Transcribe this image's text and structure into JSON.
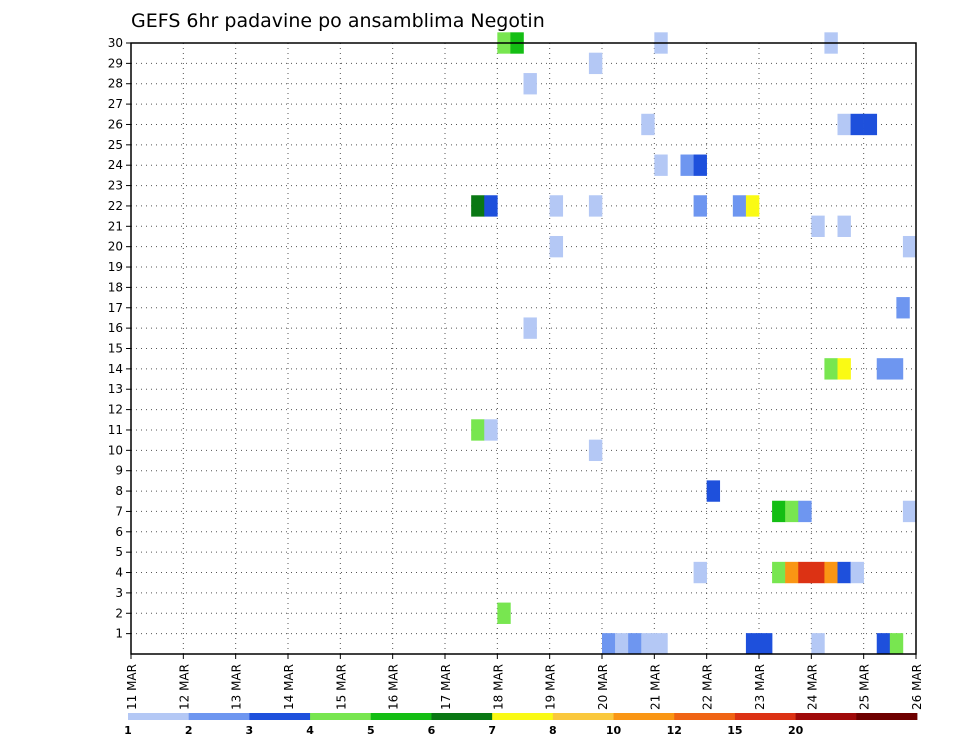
{
  "chart_data": {
    "type": "heatmap",
    "title": "GEFS 6hr padavine po ansamblima Negotin",
    "xlabel": "",
    "ylabel": "",
    "x_range": [
      0,
      60
    ],
    "y_range": [
      0,
      30
    ],
    "y_ticks": [
      1,
      2,
      3,
      4,
      5,
      6,
      7,
      8,
      9,
      10,
      11,
      12,
      13,
      14,
      15,
      16,
      17,
      18,
      19,
      20,
      21,
      22,
      23,
      24,
      25,
      26,
      27,
      28,
      29,
      30
    ],
    "x_ticks": [
      {
        "label": "11 MAR",
        "step": 0
      },
      {
        "label": "12 MAR",
        "step": 4
      },
      {
        "label": "13 MAR",
        "step": 8
      },
      {
        "label": "14 MAR",
        "step": 12
      },
      {
        "label": "15 MAR",
        "step": 16
      },
      {
        "label": "16 MAR",
        "step": 20
      },
      {
        "label": "17 MAR",
        "step": 24
      },
      {
        "label": "18 MAR",
        "step": 28
      },
      {
        "label": "19 MAR",
        "step": 32
      },
      {
        "label": "20 MAR",
        "step": 36
      },
      {
        "label": "21 MAR",
        "step": 40
      },
      {
        "label": "22 MAR",
        "step": 44
      },
      {
        "label": "23 MAR",
        "step": 48
      },
      {
        "label": "24 MAR",
        "step": 52
      },
      {
        "label": "25 MAR",
        "step": 56
      },
      {
        "label": "26 MAR",
        "step": 60
      }
    ],
    "colorbar": {
      "bins": [
        1,
        2,
        3,
        4,
        5,
        6,
        7,
        8,
        10,
        12,
        15,
        20
      ],
      "labels": [
        "1",
        "2",
        "3",
        "4",
        "5",
        "6",
        "7",
        "8",
        "10",
        "12",
        "15",
        "20"
      ],
      "colors": [
        "#b4c8f5",
        "#6e96f0",
        "#1e50dc",
        "#78e650",
        "#14be14",
        "#0a7814",
        "#fafa14",
        "#fac83c",
        "#fa9614",
        "#f06414",
        "#dc3214",
        "#a00a0a",
        "#6e0000"
      ]
    },
    "cells": [
      {
        "step": 28.5,
        "member": 30,
        "color": "#78e650"
      },
      {
        "step": 29.5,
        "member": 30,
        "color": "#14be14"
      },
      {
        "step": 40.5,
        "member": 30,
        "color": "#b4c8f5"
      },
      {
        "step": 53.5,
        "member": 30,
        "color": "#b4c8f5"
      },
      {
        "step": 35.5,
        "member": 29,
        "color": "#b4c8f5"
      },
      {
        "step": 30.5,
        "member": 28,
        "color": "#b4c8f5"
      },
      {
        "step": 39.5,
        "member": 26,
        "color": "#b4c8f5"
      },
      {
        "step": 54.5,
        "member": 26,
        "color": "#b4c8f5"
      },
      {
        "step": 55.5,
        "member": 26,
        "color": "#1e50dc"
      },
      {
        "step": 56.5,
        "member": 26,
        "color": "#1e50dc"
      },
      {
        "step": 40.5,
        "member": 24,
        "color": "#b4c8f5"
      },
      {
        "step": 42.5,
        "member": 24,
        "color": "#6e96f0"
      },
      {
        "step": 43.5,
        "member": 24,
        "color": "#1e50dc"
      },
      {
        "step": 26.5,
        "member": 22,
        "color": "#0a7814"
      },
      {
        "step": 27.5,
        "member": 22,
        "color": "#1e50dc"
      },
      {
        "step": 32.5,
        "member": 22,
        "color": "#b4c8f5"
      },
      {
        "step": 35.5,
        "member": 22,
        "color": "#b4c8f5"
      },
      {
        "step": 43.5,
        "member": 22,
        "color": "#6e96f0"
      },
      {
        "step": 46.5,
        "member": 22,
        "color": "#6e96f0"
      },
      {
        "step": 47.5,
        "member": 22,
        "color": "#fafa14"
      },
      {
        "step": 52.5,
        "member": 21,
        "color": "#b4c8f5"
      },
      {
        "step": 54.5,
        "member": 21,
        "color": "#b4c8f5"
      },
      {
        "step": 32.5,
        "member": 20,
        "color": "#b4c8f5"
      },
      {
        "step": 59.5,
        "member": 20,
        "color": "#b4c8f5"
      },
      {
        "step": 59,
        "member": 17,
        "color": "#6e96f0"
      },
      {
        "step": 30.5,
        "member": 16,
        "color": "#b4c8f5"
      },
      {
        "step": 53.5,
        "member": 14,
        "color": "#78e650"
      },
      {
        "step": 54.5,
        "member": 14,
        "color": "#fafa14"
      },
      {
        "step": 57.5,
        "member": 14,
        "color": "#6e96f0"
      },
      {
        "step": 58.5,
        "member": 14,
        "color": "#6e96f0"
      },
      {
        "step": 26.5,
        "member": 11,
        "color": "#78e650"
      },
      {
        "step": 27.5,
        "member": 11,
        "color": "#b4c8f5"
      },
      {
        "step": 35.5,
        "member": 10,
        "color": "#b4c8f5"
      },
      {
        "step": 44.5,
        "member": 8,
        "color": "#1e50dc"
      },
      {
        "step": 49.5,
        "member": 7,
        "color": "#14be14"
      },
      {
        "step": 50.5,
        "member": 7,
        "color": "#78e650"
      },
      {
        "step": 51.5,
        "member": 7,
        "color": "#6e96f0"
      },
      {
        "step": 59.5,
        "member": 7,
        "color": "#b4c8f5"
      },
      {
        "step": 43.5,
        "member": 4,
        "color": "#b4c8f5"
      },
      {
        "step": 49.5,
        "member": 4,
        "color": "#78e650"
      },
      {
        "step": 50.5,
        "member": 4,
        "color": "#fa9614"
      },
      {
        "step": 51.5,
        "member": 4,
        "color": "#dc3214"
      },
      {
        "step": 52.5,
        "member": 4,
        "color": "#dc3214"
      },
      {
        "step": 53.5,
        "member": 4,
        "color": "#fa9614"
      },
      {
        "step": 54.5,
        "member": 4,
        "color": "#1e50dc"
      },
      {
        "step": 55.5,
        "member": 4,
        "color": "#b4c8f5"
      },
      {
        "step": 28.5,
        "member": 2,
        "color": "#78e650"
      },
      {
        "step": 36.5,
        "member": 0.5,
        "color": "#6e96f0"
      },
      {
        "step": 37.5,
        "member": 0.5,
        "color": "#b4c8f5"
      },
      {
        "step": 38.5,
        "member": 0.5,
        "color": "#6e96f0"
      },
      {
        "step": 39.5,
        "member": 0.5,
        "color": "#b4c8f5"
      },
      {
        "step": 40.5,
        "member": 0.5,
        "color": "#b4c8f5"
      },
      {
        "step": 47.5,
        "member": 0.5,
        "color": "#1e50dc"
      },
      {
        "step": 48.5,
        "member": 0.5,
        "color": "#1e50dc"
      },
      {
        "step": 52.5,
        "member": 0.5,
        "color": "#b4c8f5"
      },
      {
        "step": 57.5,
        "member": 0.5,
        "color": "#1e50dc"
      },
      {
        "step": 58.5,
        "member": 0.5,
        "color": "#78e650"
      }
    ]
  }
}
